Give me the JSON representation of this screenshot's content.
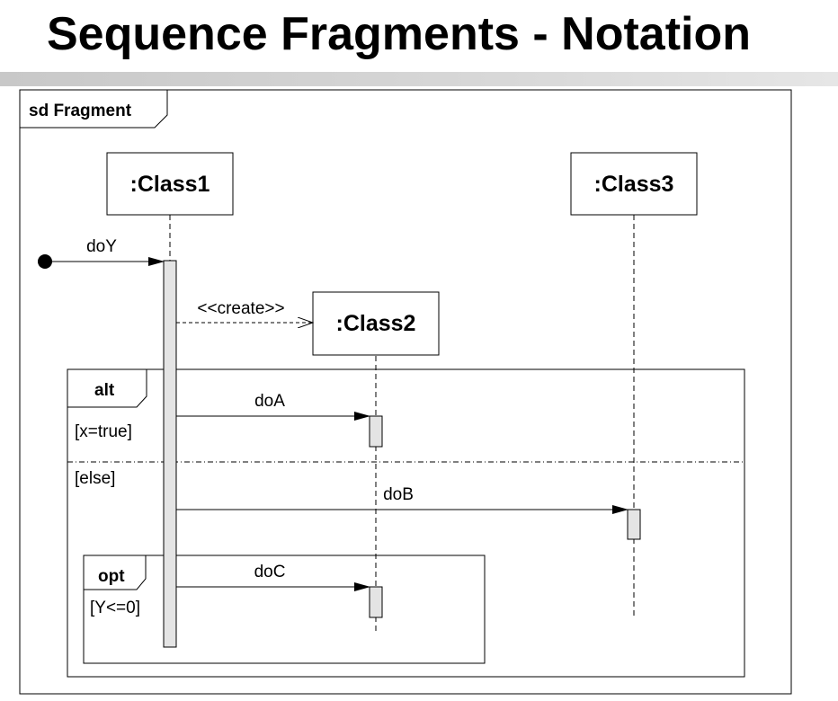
{
  "slide": {
    "title": "Sequence Fragments - Notation"
  },
  "diagram": {
    "frame_label": "sd Fragment",
    "lifelines": {
      "class1": ":Class1",
      "class2": ":Class2",
      "class3": ":Class3"
    },
    "messages": {
      "doY": "doY",
      "create": "<<create>>",
      "doA": "doA",
      "doB": "doB",
      "doC": "doC"
    },
    "alt": {
      "keyword": "alt",
      "guard_true": "[x=true]",
      "guard_else": "[else]"
    },
    "opt": {
      "keyword": "opt",
      "guard": "[Y<=0]"
    }
  }
}
